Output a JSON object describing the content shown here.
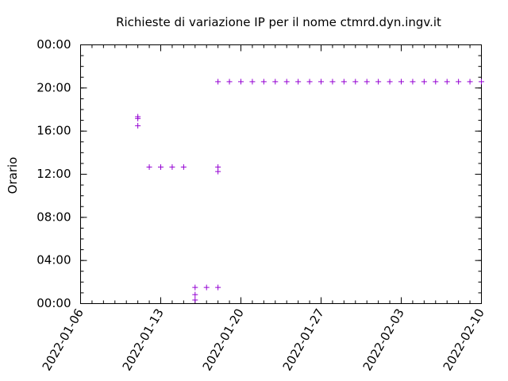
{
  "chart_data": {
    "type": "scatter",
    "title": "Richieste di variazione IP per il nome ctmrd.dyn.ingv.it",
    "xlabel": "",
    "ylabel": "Orario",
    "xlim": [
      "2022-01-06",
      "2022-02-10"
    ],
    "ylim": [
      "00:00",
      "24:00"
    ],
    "x_ticks": [
      "2022-01-06",
      "2022-01-13",
      "2022-01-20",
      "2022-01-27",
      "2022-02-03",
      "2022-02-10"
    ],
    "y_ticks": [
      "00:00",
      "04:00",
      "08:00",
      "12:00",
      "16:00",
      "20:00",
      "00:00"
    ],
    "grid": false,
    "marker": "+",
    "series": [
      {
        "color": "#9400d3",
        "points": [
          {
            "x": "2022-01-11",
            "y": "17:20"
          },
          {
            "x": "2022-01-11",
            "y": "17:10"
          },
          {
            "x": "2022-01-11",
            "y": "16:30"
          },
          {
            "x": "2022-01-12",
            "y": "12:40"
          },
          {
            "x": "2022-01-13",
            "y": "12:40"
          },
          {
            "x": "2022-01-14",
            "y": "12:40"
          },
          {
            "x": "2022-01-15",
            "y": "12:40"
          },
          {
            "x": "2022-01-16",
            "y": "01:30"
          },
          {
            "x": "2022-01-16",
            "y": "00:50"
          },
          {
            "x": "2022-01-16",
            "y": "00:20"
          },
          {
            "x": "2022-01-17",
            "y": "01:30"
          },
          {
            "x": "2022-01-18",
            "y": "01:30"
          },
          {
            "x": "2022-01-18",
            "y": "12:40"
          },
          {
            "x": "2022-01-18",
            "y": "12:15"
          },
          {
            "x": "2022-01-18",
            "y": "20:35"
          },
          {
            "x": "2022-01-19",
            "y": "20:35"
          },
          {
            "x": "2022-01-20",
            "y": "20:35"
          },
          {
            "x": "2022-01-21",
            "y": "20:35"
          },
          {
            "x": "2022-01-22",
            "y": "20:35"
          },
          {
            "x": "2022-01-23",
            "y": "20:35"
          },
          {
            "x": "2022-01-24",
            "y": "20:35"
          },
          {
            "x": "2022-01-25",
            "y": "20:35"
          },
          {
            "x": "2022-01-26",
            "y": "20:35"
          },
          {
            "x": "2022-01-27",
            "y": "20:35"
          },
          {
            "x": "2022-01-28",
            "y": "20:35"
          },
          {
            "x": "2022-01-29",
            "y": "20:35"
          },
          {
            "x": "2022-01-30",
            "y": "20:35"
          },
          {
            "x": "2022-01-31",
            "y": "20:35"
          },
          {
            "x": "2022-02-01",
            "y": "20:35"
          },
          {
            "x": "2022-02-02",
            "y": "20:35"
          },
          {
            "x": "2022-02-03",
            "y": "20:35"
          },
          {
            "x": "2022-02-04",
            "y": "20:35"
          },
          {
            "x": "2022-02-05",
            "y": "20:35"
          },
          {
            "x": "2022-02-06",
            "y": "20:35"
          },
          {
            "x": "2022-02-07",
            "y": "20:35"
          },
          {
            "x": "2022-02-08",
            "y": "20:35"
          },
          {
            "x": "2022-02-09",
            "y": "20:35"
          },
          {
            "x": "2022-02-10",
            "y": "20:35"
          }
        ]
      }
    ]
  }
}
